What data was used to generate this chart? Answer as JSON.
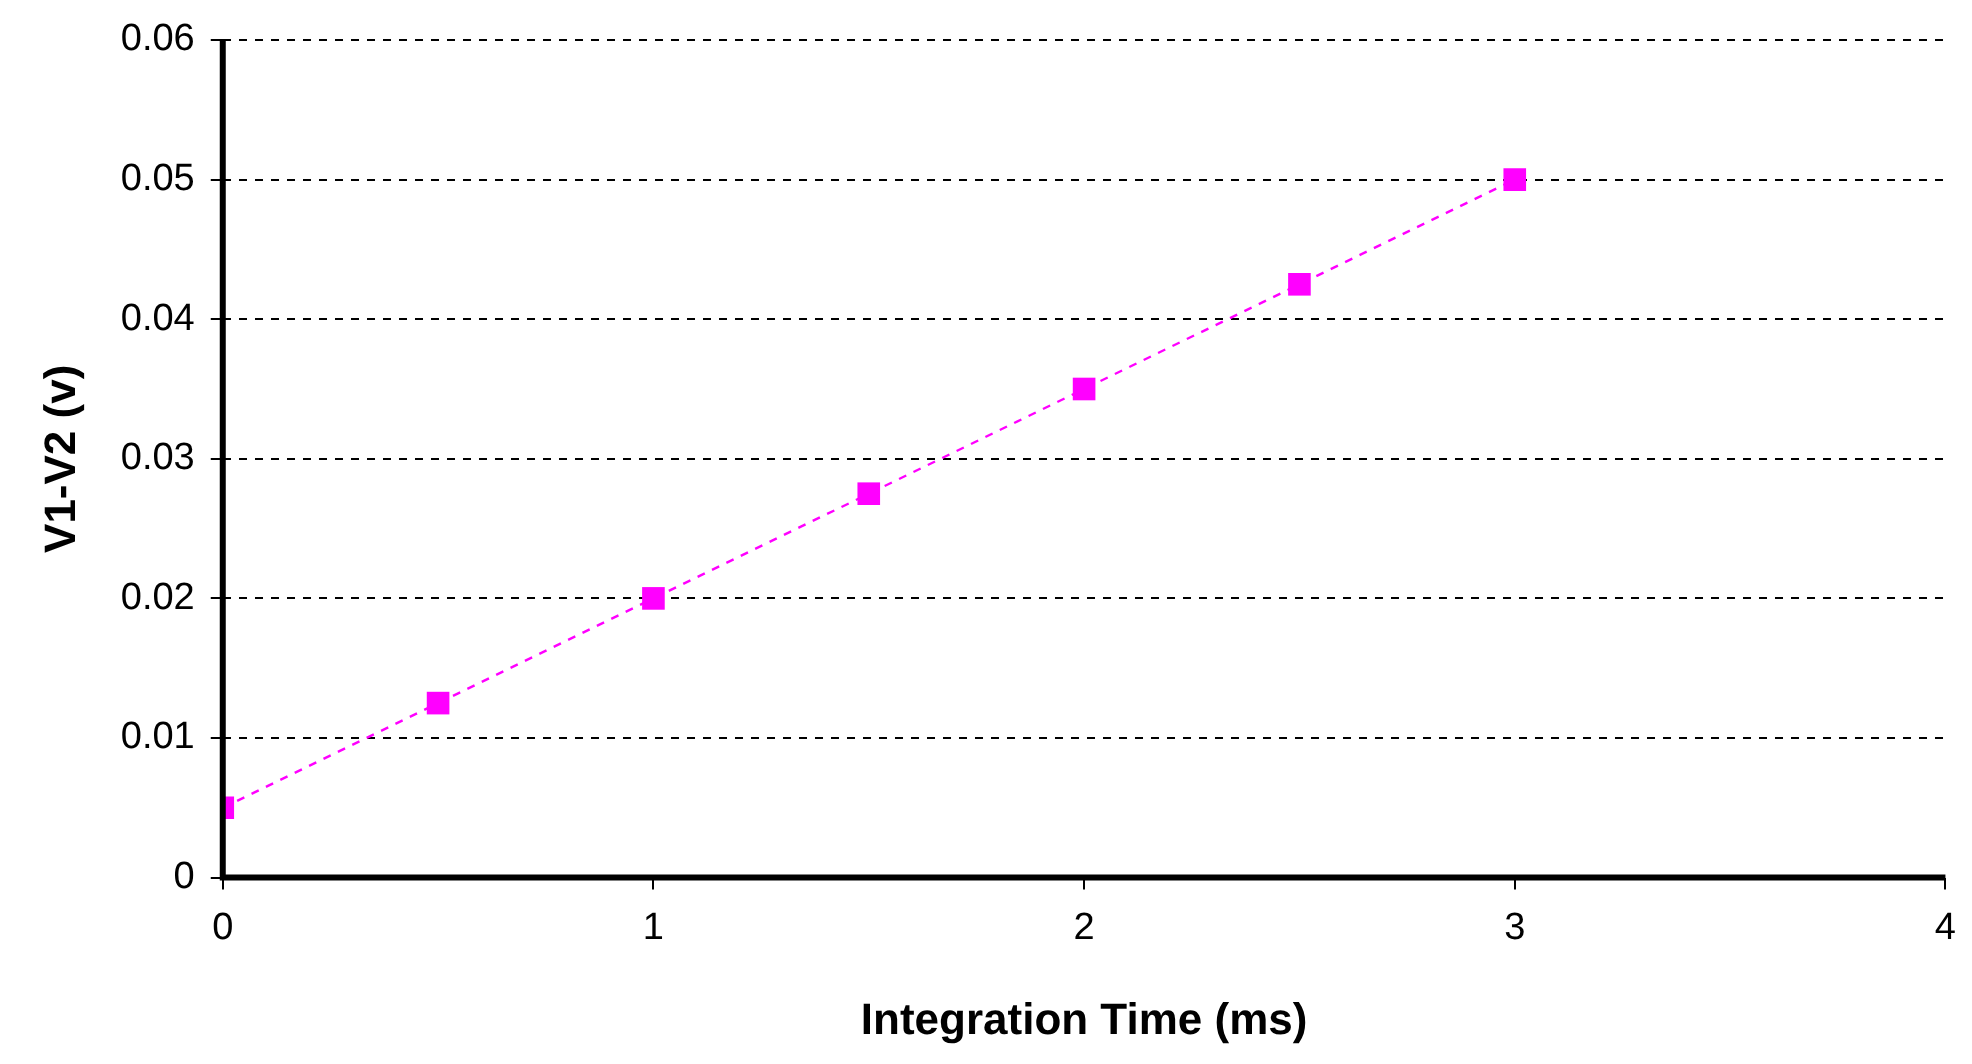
{
  "chart_data": {
    "type": "line",
    "xlabel": "Integration Time (ms)",
    "ylabel": "V1-V2 (v)",
    "x": [
      0,
      0.5,
      1,
      1.5,
      2,
      2.5,
      3
    ],
    "series": [
      {
        "color": "#ff00ff",
        "values": [
          0.005,
          0.0125,
          0.02,
          0.0275,
          0.035,
          0.0425,
          0.05
        ]
      }
    ],
    "xlim": [
      0,
      4
    ],
    "xticks": [
      0,
      1,
      2,
      3,
      4
    ],
    "ylim": [
      0,
      0.06
    ],
    "yticks": [
      0,
      0.01,
      0.02,
      0.03,
      0.04,
      0.05,
      0.06
    ],
    "grid": "y",
    "legend": false,
    "marker": "square",
    "line_style": "dashed"
  }
}
